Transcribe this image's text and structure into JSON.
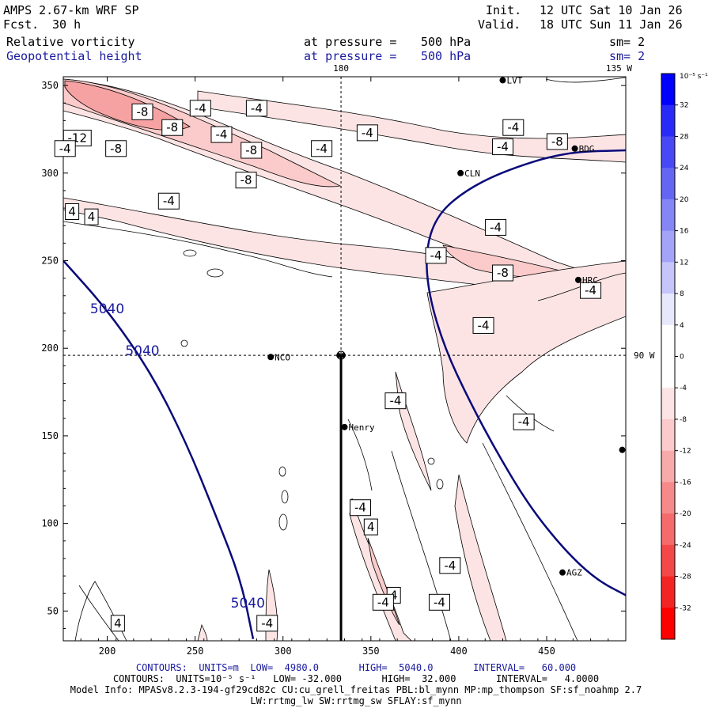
{
  "header": {
    "model": "AMPS 2.67-km WRF SP",
    "fcst_label": "Fcst.",
    "fcst_value": "30 h",
    "init_label": "Init.",
    "init_value": "12 UTC Sat 10 Jan 26",
    "valid_label": "Valid.",
    "valid_value": "18 UTC Sun 11 Jan 26",
    "field1": "Relative vorticity",
    "field2": "Geopotential height",
    "pressure_label1": "at pressure =",
    "pressure_value1": "500 hPa",
    "pressure_label2": "at pressure =",
    "pressure_value2": "500 hPa",
    "sm1": "sm= 2",
    "sm2": "sm= 2"
  },
  "chart_data": {
    "type": "contour-map",
    "xlim": [
      175,
      495
    ],
    "ylim": [
      33,
      355
    ],
    "x_ticks": [
      200,
      250,
      300,
      350,
      400,
      450
    ],
    "y_ticks": [
      50,
      100,
      150,
      200,
      250,
      300,
      350
    ],
    "meridian_labels": [
      "180",
      "135 W",
      "90 W"
    ],
    "stations": [
      {
        "name": "LVT",
        "x": 425,
        "y": 353
      },
      {
        "name": "BDG",
        "x": 466,
        "y": 314
      },
      {
        "name": "CLN",
        "x": 401,
        "y": 300
      },
      {
        "name": "HRC",
        "x": 468,
        "y": 239
      },
      {
        "name": "NCO",
        "x": 293,
        "y": 195
      },
      {
        "name": "Henry",
        "x": 335,
        "y": 155
      },
      {
        "name": "AGZ",
        "x": 459,
        "y": 72
      },
      {
        "name": "",
        "x": 493,
        "y": 142
      }
    ],
    "pole_marker": {
      "x": 333,
      "y": 196
    },
    "height_contours": [
      {
        "value": 5040,
        "label": "5040",
        "points": [
          [
            175,
            250
          ],
          [
            200,
            222
          ],
          [
            225,
            186
          ],
          [
            245,
            146
          ],
          [
            262,
            104
          ],
          [
            276,
            68
          ],
          [
            283,
            34
          ]
        ],
        "label_positions": [
          [
            200,
            220
          ],
          [
            220,
            196
          ],
          [
            280,
            52
          ]
        ]
      },
      {
        "value": 5040,
        "label": "",
        "points": [
          [
            495,
            313
          ],
          [
            460,
            312
          ],
          [
            425,
            301
          ],
          [
            402,
            289
          ],
          [
            387,
            275
          ],
          [
            381,
            255
          ],
          [
            383,
            230
          ],
          [
            392,
            200
          ],
          [
            406,
            170
          ],
          [
            422,
            140
          ],
          [
            440,
            110
          ],
          [
            460,
            85
          ],
          [
            478,
            68
          ],
          [
            495,
            59
          ]
        ],
        "label_positions": []
      }
    ],
    "vorticity_labels": [
      {
        "text": "-8",
        "x": 220,
        "y": 335
      },
      {
        "text": "-4",
        "x": 253,
        "y": 337
      },
      {
        "text": "-4",
        "x": 285,
        "y": 337
      },
      {
        "text": "-8",
        "x": 237,
        "y": 326
      },
      {
        "text": "-12",
        "x": 183,
        "y": 320
      },
      {
        "text": "-4",
        "x": 265,
        "y": 322
      },
      {
        "text": "-4",
        "x": 176,
        "y": 314
      },
      {
        "text": "-8",
        "x": 205,
        "y": 314
      },
      {
        "text": "-8",
        "x": 282,
        "y": 313
      },
      {
        "text": "-4",
        "x": 322,
        "y": 314
      },
      {
        "text": "-4",
        "x": 348,
        "y": 323
      },
      {
        "text": "-8",
        "x": 279,
        "y": 296
      },
      {
        "text": "-4",
        "x": 235,
        "y": 284
      },
      {
        "text": "4",
        "x": 180,
        "y": 278
      },
      {
        "text": "4",
        "x": 191,
        "y": 275
      },
      {
        "text": "-4",
        "x": 431,
        "y": 326
      },
      {
        "text": "-4",
        "x": 425,
        "y": 315
      },
      {
        "text": "-8",
        "x": 456,
        "y": 318
      },
      {
        "text": "-4",
        "x": 421,
        "y": 269
      },
      {
        "text": "-4",
        "x": 387,
        "y": 253
      },
      {
        "text": "-8",
        "x": 425,
        "y": 243
      },
      {
        "text": "-4",
        "x": 475,
        "y": 233
      },
      {
        "text": "-4",
        "x": 414,
        "y": 213
      },
      {
        "text": "-4",
        "x": 364,
        "y": 170
      },
      {
        "text": "-4",
        "x": 437,
        "y": 158
      },
      {
        "text": "-4",
        "x": 344,
        "y": 109
      },
      {
        "text": "4",
        "x": 350,
        "y": 98
      },
      {
        "text": "-4",
        "x": 395,
        "y": 76
      },
      {
        "text": "4",
        "x": 363,
        "y": 59
      },
      {
        "text": "-4",
        "x": 357,
        "y": 55
      },
      {
        "text": "-4",
        "x": 389,
        "y": 55
      },
      {
        "text": "-4",
        "x": 291,
        "y": 43
      },
      {
        "text": "4",
        "x": 206,
        "y": 43
      }
    ],
    "colorbar": {
      "unit": "10⁻⁵ s⁻¹",
      "levels": [
        32,
        28,
        24,
        20,
        16,
        12,
        8,
        4,
        0,
        -4,
        -8,
        -12,
        -16,
        -20,
        -24,
        -28,
        -32
      ],
      "colors": [
        "#0000ff",
        "#2a2af8",
        "#4848f6",
        "#6565f4",
        "#8585f5",
        "#a3a3f7",
        "#c5c5fa",
        "#e8e8fd",
        "#ffffff",
        "#ffffff",
        "#fde4e4",
        "#fbcaca",
        "#f8aaaa",
        "#f68a8a",
        "#f56a6a",
        "#f44747",
        "#f32424",
        "#ff0000"
      ]
    }
  },
  "footer": {
    "line1": "CONTOURS:  UNITS=m  LOW=  4980.0       HIGH=  5040.0       INTERVAL=   60.000",
    "line2": "CONTOURS:  UNITS=10⁻⁵ s⁻¹   LOW= -32.000       HIGH=  32.000       INTERVAL=   4.0000",
    "line3": "Model Info: MPASv8.2.3-194-gf29cd82c CU:cu_grell_freitas PBL:bl_mynn MP:mp_thompson SF:sf_noahmp 2.7",
    "line4": "LW:rrtmg_lw SW:rrtmg_sw SFLAY:sf_mynn"
  },
  "colors": {
    "height_contour": "#0a0a7a",
    "header_blue": "#1a1aa0"
  }
}
